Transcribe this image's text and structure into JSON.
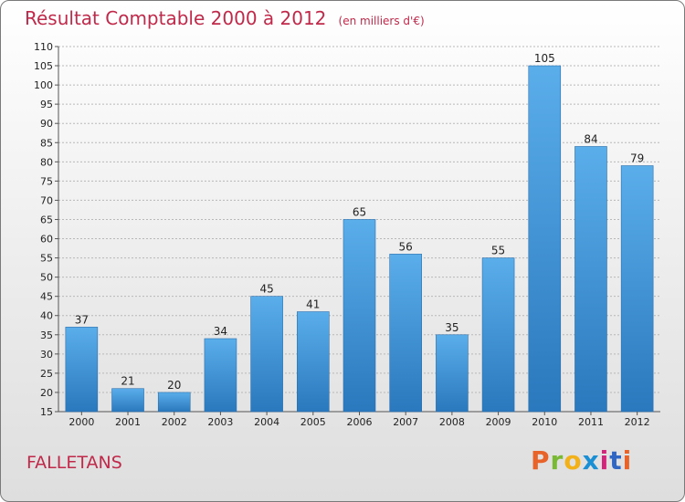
{
  "header": {
    "title": "Résultat Comptable 2000 à 2012",
    "subtitle": "(en milliers d'€)"
  },
  "footer": {
    "city": "FALLETANS",
    "logo": "Proxiti",
    "logo_colors": [
      "#e8632a",
      "#7ab934",
      "#f2b118",
      "#1b8fd4",
      "#d4237a",
      "#2f66c4",
      "#e8632a"
    ]
  },
  "colors": {
    "title": "#c0294a",
    "bar_top": "#5aaeea",
    "bar_bottom": "#2a78bd",
    "grid": "#b8b8b8"
  },
  "chart_data": {
    "type": "bar",
    "categories": [
      "2000",
      "2001",
      "2002",
      "2003",
      "2004",
      "2005",
      "2006",
      "2007",
      "2008",
      "2009",
      "2010",
      "2011",
      "2012"
    ],
    "values": [
      37,
      21,
      20,
      34,
      45,
      41,
      65,
      56,
      35,
      55,
      105,
      84,
      79
    ],
    "ylim": [
      15,
      110
    ],
    "yticks": [
      15,
      20,
      25,
      30,
      35,
      40,
      45,
      50,
      55,
      60,
      65,
      70,
      75,
      80,
      85,
      90,
      95,
      100,
      105,
      110
    ],
    "grid": true,
    "xlabel": "",
    "ylabel": ""
  }
}
